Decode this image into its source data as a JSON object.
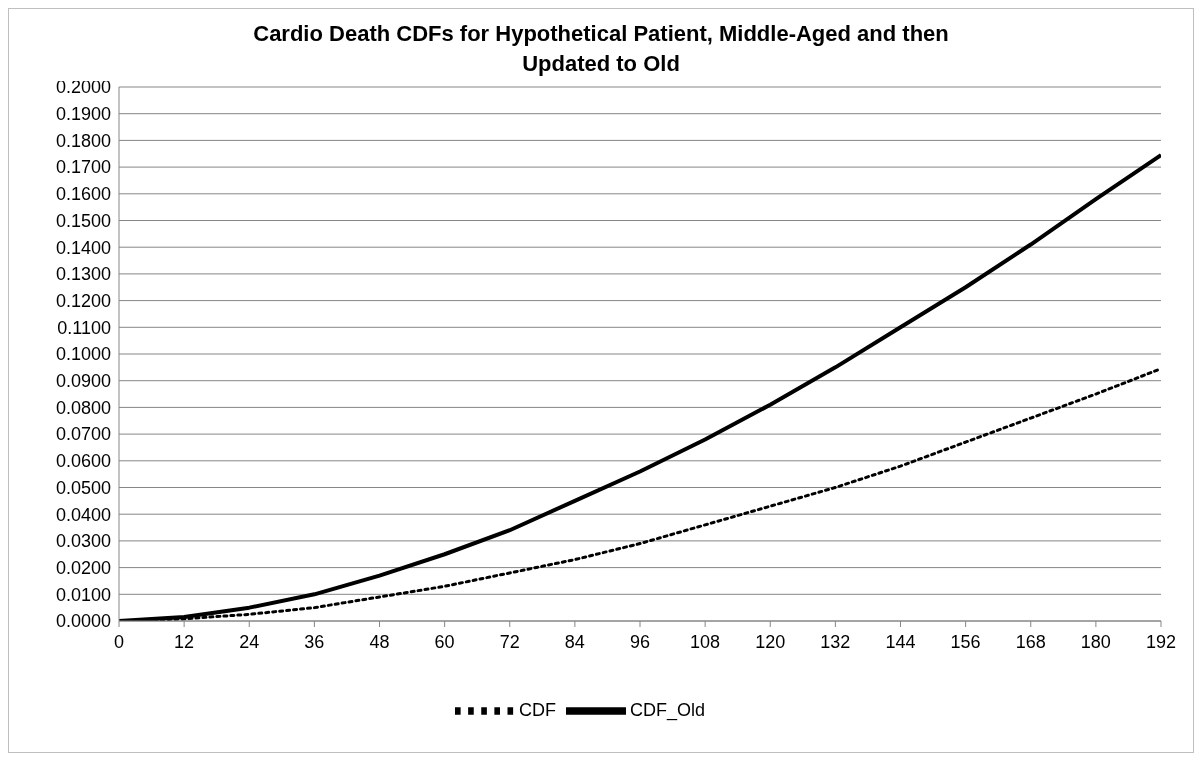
{
  "chart_data": {
    "type": "line",
    "title": "Cardio Death CDFs for Hypothetical Patient, Middle-Aged and then Updated to Old",
    "x": [
      0,
      12,
      24,
      36,
      48,
      60,
      72,
      84,
      96,
      108,
      120,
      132,
      144,
      156,
      168,
      180,
      192
    ],
    "series": [
      {
        "name": "CDF",
        "color": "#000000",
        "line_style": "dotted",
        "values": [
          0,
          0.0008,
          0.0025,
          0.005,
          0.009,
          0.013,
          0.018,
          0.023,
          0.029,
          0.036,
          0.043,
          0.05,
          0.058,
          0.067,
          0.076,
          0.085,
          0.0945
        ]
      },
      {
        "name": "CDF_Old",
        "color": "#000000",
        "line_style": "solid",
        "values": [
          0,
          0.0015,
          0.005,
          0.01,
          0.017,
          0.025,
          0.034,
          0.045,
          0.056,
          0.068,
          0.081,
          0.095,
          0.11,
          0.125,
          0.141,
          0.158,
          0.1745
        ]
      }
    ],
    "xlim": [
      0,
      192
    ],
    "xticks": [
      0,
      12,
      24,
      36,
      48,
      60,
      72,
      84,
      96,
      108,
      120,
      132,
      144,
      156,
      168,
      180,
      192
    ],
    "ylim": [
      0,
      0.2
    ],
    "yticks": [
      {
        "value": 0,
        "label": "0.0000"
      },
      {
        "value": 0.01,
        "label": "0.0100"
      },
      {
        "value": 0.02,
        "label": "0.0200"
      },
      {
        "value": 0.03,
        "label": "0.0300"
      },
      {
        "value": 0.04,
        "label": "0.0400"
      },
      {
        "value": 0.05,
        "label": "0.0500"
      },
      {
        "value": 0.06,
        "label": "0.0600"
      },
      {
        "value": 0.07,
        "label": "0.0700"
      },
      {
        "value": 0.08,
        "label": "0.0800"
      },
      {
        "value": 0.09,
        "label": "0.0900"
      },
      {
        "value": 0.1,
        "label": "0.1000"
      },
      {
        "value": 0.11,
        "label": "0.1100"
      },
      {
        "value": 0.12,
        "label": "0.1200"
      },
      {
        "value": 0.13,
        "label": "0.1300"
      },
      {
        "value": 0.14,
        "label": "0.1400"
      },
      {
        "value": 0.15,
        "label": "0.1500"
      },
      {
        "value": 0.16,
        "label": "0.1600"
      },
      {
        "value": 0.17,
        "label": "0.1700"
      },
      {
        "value": 0.18,
        "label": "0.1800"
      },
      {
        "value": 0.19,
        "label": "0.1900"
      },
      {
        "value": 0.2,
        "label": "0.2000"
      }
    ],
    "grid": "y",
    "legend": "bottom",
    "marker": "none"
  }
}
